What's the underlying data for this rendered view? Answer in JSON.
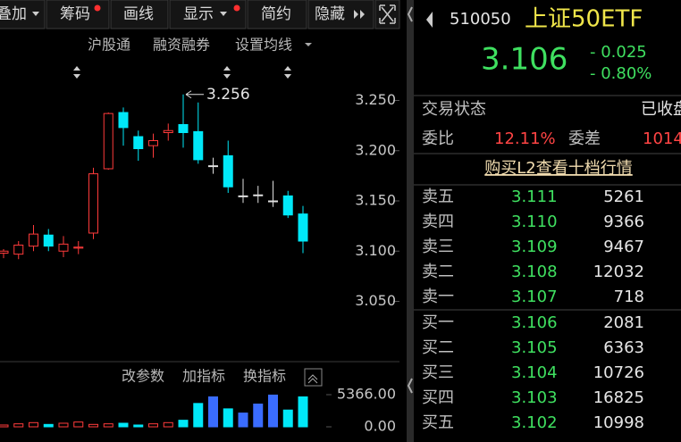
{
  "toolbar": [
    "叠加",
    "筹码",
    "画线",
    "显示",
    "简约",
    "隐藏"
  ],
  "chart_links": [
    "沪股通",
    "融资融券",
    "设置均线"
  ],
  "chart_data": {
    "type": "candlestick",
    "open": [
      3.098,
      3.097,
      3.105,
      3.116,
      3.1,
      3.103,
      3.118,
      3.182,
      3.238,
      3.214,
      3.205,
      3.218,
      3.226,
      3.219,
      3.185,
      3.195,
      3.155,
      3.156,
      3.15,
      3.155,
      3.137
    ],
    "high": [
      3.102,
      3.11,
      3.126,
      3.122,
      3.115,
      3.11,
      3.183,
      3.238,
      3.243,
      3.22,
      3.217,
      3.227,
      3.256,
      3.248,
      3.193,
      3.21,
      3.172,
      3.165,
      3.17,
      3.16,
      3.145
    ],
    "low": [
      3.093,
      3.092,
      3.1,
      3.1,
      3.094,
      3.097,
      3.112,
      3.181,
      3.205,
      3.19,
      3.193,
      3.21,
      3.203,
      3.187,
      3.177,
      3.158,
      3.148,
      3.148,
      3.144,
      3.133,
      3.098
    ],
    "close": [
      3.1,
      3.106,
      3.117,
      3.105,
      3.107,
      3.104,
      3.177,
      3.237,
      3.223,
      3.202,
      3.21,
      3.22,
      3.218,
      3.191,
      3.185,
      3.164,
      3.155,
      3.156,
      3.15,
      3.136,
      3.11
    ],
    "up_color": "#ff3b3b",
    "down_color": "#00e8f8",
    "ylim": [
      2.99,
      3.286
    ],
    "yticks": [
      {
        "value": 3.25,
        "label": "3.250"
      },
      {
        "value": 3.2,
        "label": "3.200"
      },
      {
        "value": 3.15,
        "label": "3.150"
      },
      {
        "value": 3.1,
        "label": "3.100"
      },
      {
        "value": 3.05,
        "label": "3.050"
      }
    ],
    "max_annotation": 3.256
  },
  "indicator_buttons": [
    "改参数",
    "加指标",
    "换指标"
  ],
  "volume_data": {
    "type": "bar",
    "values": [
      300,
      500,
      700,
      400,
      600,
      800,
      400,
      500,
      600,
      300,
      500,
      700,
      1100,
      3900,
      5000,
      3000,
      2300,
      3800,
      5300,
      2800,
      5000
    ],
    "ylim": [
      0,
      5366
    ],
    "yticks": [
      {
        "value": 5366,
        "label": "5366.00"
      },
      {
        "value": 0,
        "label": "0.00"
      }
    ]
  },
  "quote": {
    "code": "510050",
    "name": "上证50ETF",
    "price": "3.106",
    "change": "- 0.025",
    "change_pct": "- 0.80%",
    "status_label": "交易状态",
    "status": "已收盘",
    "ratio_label": "委比",
    "ratio": "12.11%",
    "diff_label": "委差",
    "diff": "1014",
    "l2_link": "购买L2查看十档行情"
  },
  "order_book": {
    "sells": [
      {
        "label": "卖五",
        "price": "3.111",
        "volume": "5261"
      },
      {
        "label": "卖四",
        "price": "3.110",
        "volume": "9366"
      },
      {
        "label": "卖三",
        "price": "3.109",
        "volume": "9467"
      },
      {
        "label": "卖二",
        "price": "3.108",
        "volume": "12032"
      },
      {
        "label": "卖一",
        "price": "3.107",
        "volume": "718"
      }
    ],
    "buys": [
      {
        "label": "买一",
        "price": "3.106",
        "volume": "2081"
      },
      {
        "label": "买二",
        "price": "3.105",
        "volume": "6363"
      },
      {
        "label": "买三",
        "price": "3.104",
        "volume": "10726"
      },
      {
        "label": "买四",
        "price": "3.103",
        "volume": "16825"
      },
      {
        "label": "买五",
        "price": "3.102",
        "volume": "10998"
      }
    ]
  }
}
